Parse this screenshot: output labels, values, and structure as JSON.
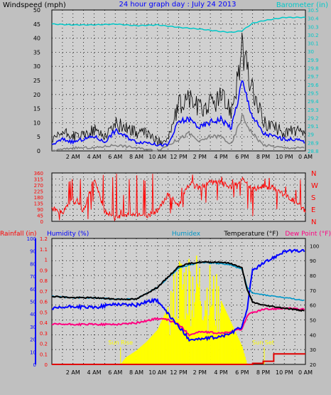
{
  "chart_data": [
    {
      "type": "line",
      "title": "24 hour graph day : July 24 2013",
      "ylabel_left": "Windspeed (mph)",
      "ylabel_right": "Barometer (in)",
      "x_ticks": [
        "2 AM",
        "4 AM",
        "6 AM",
        "8 AM",
        "10 AM",
        "12 PM",
        "2 PM",
        "4 PM",
        "6 PM",
        "8 PM",
        "10 PM",
        "0 AM"
      ],
      "y_left_ticks": [
        0,
        5,
        10,
        15,
        20,
        25,
        30,
        35,
        40,
        45,
        50
      ],
      "ylim_left": [
        0,
        50
      ],
      "y_right_ticks": [
        "28.8",
        "28.9",
        "29",
        "29.1",
        "29.2",
        "29.3",
        "29.4",
        "29.5",
        "29.6",
        "29.7",
        "29.8",
        "29.9",
        "30",
        "30.1",
        "30.2",
        "30.3",
        "30.4",
        "30.5"
      ],
      "ylim_right": [
        28.8,
        30.5
      ],
      "grid": true,
      "colors": {
        "gust": "#000000",
        "avg": "#0000ff",
        "min": "#808080",
        "baro": "#00c8c8"
      },
      "series": [
        {
          "name": "gust",
          "x": [
            0,
            1,
            2,
            3,
            4,
            5,
            6,
            7,
            8,
            9,
            10,
            11,
            12,
            13,
            14,
            15,
            16,
            17,
            18,
            19,
            20,
            21,
            22,
            23,
            24
          ],
          "values": [
            3,
            6,
            5,
            5,
            7,
            5,
            9,
            8,
            6,
            6,
            3,
            4,
            15,
            18,
            14,
            16,
            18,
            14,
            34,
            20,
            10,
            8,
            6,
            7,
            5
          ]
        },
        {
          "name": "avg",
          "x": [
            0,
            1,
            2,
            3,
            4,
            5,
            6,
            7,
            8,
            9,
            10,
            11,
            12,
            13,
            14,
            15,
            16,
            17,
            18,
            19,
            20,
            21,
            22,
            23,
            24
          ],
          "values": [
            2,
            4,
            3,
            4,
            5,
            3,
            7,
            5,
            3,
            3,
            2,
            2,
            10,
            11,
            8,
            10,
            11,
            8,
            24,
            12,
            6,
            5,
            4,
            4,
            3
          ]
        },
        {
          "name": "min",
          "x": [
            0,
            2,
            4,
            6,
            8,
            10,
            12,
            13,
            14,
            15,
            16,
            17,
            18,
            19,
            20,
            22,
            24
          ],
          "values": [
            0,
            1,
            1,
            2,
            1,
            0,
            4,
            6,
            3,
            5,
            5,
            2,
            12,
            6,
            2,
            1,
            1
          ]
        },
        {
          "name": "baro",
          "x": [
            0,
            2,
            4,
            6,
            8,
            10,
            12,
            14,
            16,
            17,
            18,
            19,
            20,
            22,
            24
          ],
          "values": [
            30.33,
            30.32,
            30.32,
            30.33,
            30.31,
            30.32,
            30.29,
            30.27,
            30.24,
            30.23,
            30.25,
            30.34,
            30.37,
            30.41,
            30.41
          ]
        }
      ]
    },
    {
      "type": "scatter",
      "ylabel_right_ticks": [
        "N",
        "W",
        "S",
        "E",
        "N"
      ],
      "y_left_ticks": [
        0,
        45,
        90,
        135,
        180,
        225,
        270,
        315,
        360
      ],
      "ylim": [
        0,
        360
      ],
      "grid": true,
      "color": "#ff0000",
      "series": [
        {
          "name": "wind direction",
          "x": [
            0,
            1,
            2,
            3,
            4,
            5,
            6,
            7,
            8,
            9,
            10,
            11,
            12,
            13,
            14,
            15,
            16,
            17,
            18,
            19,
            20,
            21,
            22,
            23,
            24
          ],
          "values": [
            100,
            60,
            170,
            80,
            320,
            70,
            40,
            40,
            60,
            40,
            80,
            200,
            120,
            280,
            250,
            290,
            290,
            250,
            310,
            240,
            260,
            250,
            200,
            150,
            80
          ]
        }
      ]
    },
    {
      "type": "line",
      "ylabel_left": "Rainfall (in)",
      "ylabel_left2": "Humidity (%)",
      "ylabel_mid": "Humidex",
      "ylabel_right": "Temperature (°F)",
      "ylabel_right2": "Dew Point (°F)",
      "y_rain_ticks": [
        "0",
        "0.1",
        "0.2",
        "0.3",
        "0.4",
        "0.5",
        "0.6",
        "0.7",
        "0.8",
        "0.9",
        "1",
        "1.1",
        "1.2"
      ],
      "y_hum_ticks": [
        0,
        10,
        20,
        30,
        40,
        50,
        60,
        70,
        80,
        90,
        100
      ],
      "y_temp_ticks": [
        20,
        30,
        40,
        50,
        60,
        70,
        80,
        90,
        100
      ],
      "ylim_temp": [
        20,
        105
      ],
      "ylim_hum": [
        0,
        100
      ],
      "annotations": [
        "Sun Rise",
        "Sun Set"
      ],
      "colors": {
        "temp": "#000000",
        "humidex": "#0096c8",
        "hum": "#0000ff",
        "dew": "#ff0080",
        "rain": "#e00000",
        "solar": "#ffff00"
      },
      "series": [
        {
          "name": "temp",
          "x": [
            0,
            2,
            4,
            6,
            8,
            10,
            12,
            13,
            14,
            16,
            17,
            18,
            18.5,
            19,
            20,
            22,
            24
          ],
          "values": [
            66,
            65,
            65,
            64,
            64,
            72,
            86,
            88,
            89,
            89,
            88,
            85,
            70,
            62,
            60,
            58,
            56
          ]
        },
        {
          "name": "humidex",
          "x": [
            0,
            2,
            4,
            6,
            8,
            10,
            12,
            13,
            14,
            16,
            17,
            18,
            18.5,
            19,
            20,
            22,
            24
          ],
          "values": [
            66,
            65,
            65,
            64,
            64,
            72,
            85,
            87,
            89,
            88,
            87,
            84,
            72,
            68,
            67,
            65,
            63
          ]
        },
        {
          "name": "hum",
          "x": [
            0,
            2,
            4,
            6,
            8,
            9,
            10,
            10.5,
            11,
            12,
            13,
            14,
            16,
            17,
            18,
            18.5,
            19,
            20,
            22,
            24
          ],
          "values": [
            44,
            46,
            45,
            48,
            47,
            50,
            51,
            45,
            40,
            30,
            20,
            20,
            22,
            25,
            30,
            45,
            75,
            80,
            90,
            90
          ]
        },
        {
          "name": "dew",
          "x": [
            0,
            2,
            4,
            6,
            8,
            10,
            11,
            12,
            13,
            14,
            16,
            17,
            18,
            18.5,
            19,
            20,
            22,
            24
          ],
          "values": [
            47,
            47,
            47,
            47,
            48,
            51,
            50,
            47,
            40,
            42,
            41,
            42,
            44,
            53,
            55,
            57,
            58,
            57
          ]
        },
        {
          "name": "rain",
          "x": [
            0,
            18,
            19,
            20,
            21,
            22,
            24
          ],
          "values": [
            0,
            0,
            0.01,
            0.03,
            0.1,
            0.1,
            0.1
          ]
        },
        {
          "name": "solar",
          "x": [
            6.5,
            7,
            8,
            9,
            10,
            11,
            12,
            13,
            14,
            15,
            16,
            17,
            18,
            18.5
          ],
          "values": [
            0,
            3,
            6,
            10,
            15,
            25,
            38,
            40,
            38,
            34,
            28,
            18,
            8,
            0
          ]
        }
      ]
    }
  ]
}
